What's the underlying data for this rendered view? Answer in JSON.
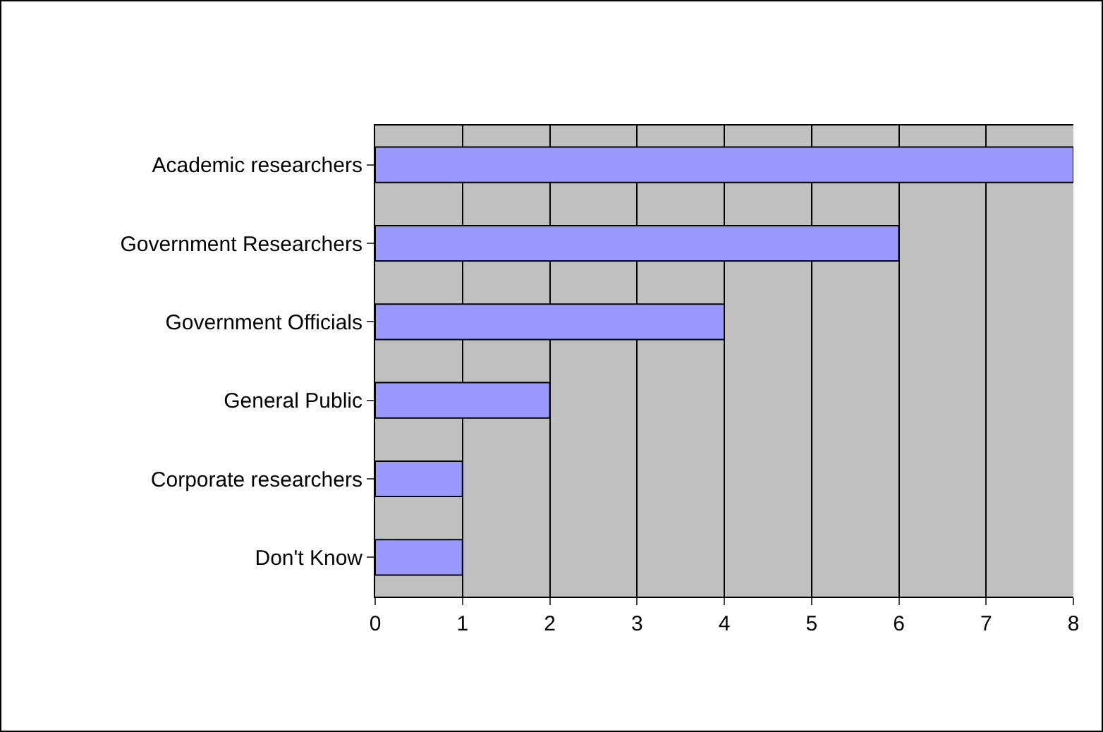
{
  "chart_data": {
    "type": "bar",
    "orientation": "horizontal",
    "categories": [
      "Academic researchers",
      "Government Researchers",
      "Government Officials",
      "General Public",
      "Corporate researchers",
      "Don't Know"
    ],
    "values": [
      8,
      6,
      4,
      2,
      1,
      1
    ],
    "color": "#9999ff",
    "xlim": [
      0,
      8
    ],
    "xticks": [
      0,
      1,
      2,
      3,
      4,
      5,
      6,
      7,
      8
    ],
    "grid": "x",
    "legend": false
  }
}
